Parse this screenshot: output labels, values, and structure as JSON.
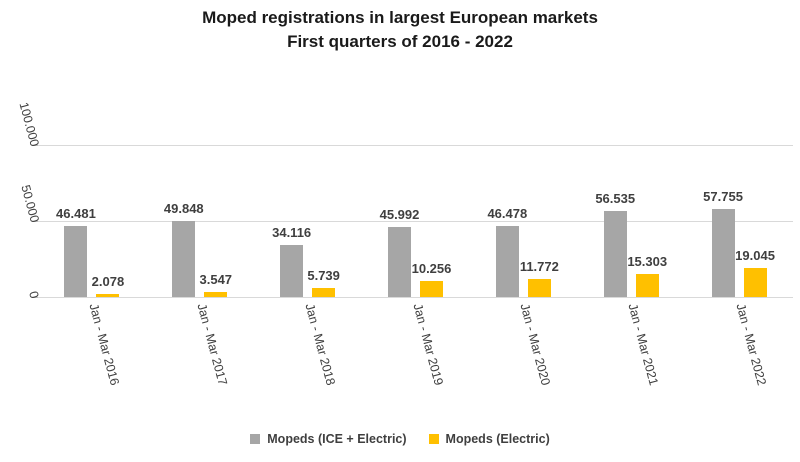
{
  "title": {
    "line1": "Moped registrations in largest European markets",
    "line2": "First quarters of 2016 - 2022"
  },
  "chart_data": {
    "type": "bar",
    "title": "Moped registrations in largest European markets — First quarters of 2016 - 2022",
    "categories": [
      "Jan - Mar 2016",
      "Jan - Mar 2017",
      "Jan - Mar 2018",
      "Jan - Mar 2019",
      "Jan - Mar 2020",
      "Jan - Mar 2021",
      "Jan - Mar 2022"
    ],
    "series": [
      {
        "name": "Mopeds (ICE + Electric)",
        "color": "#a6a6a6",
        "values": [
          46481,
          49848,
          34116,
          45992,
          46478,
          56535,
          57755
        ],
        "labels": [
          "46.481",
          "49.848",
          "34.116",
          "45.992",
          "46.478",
          "56.535",
          "57.755"
        ]
      },
      {
        "name": "Mopeds (Electric)",
        "color": "#ffc000",
        "values": [
          2078,
          3547,
          5739,
          10256,
          11772,
          15303,
          19045
        ],
        "labels": [
          "2.078",
          "3.547",
          "5.739",
          "10.256",
          "11.772",
          "15.303",
          "19.045"
        ]
      }
    ],
    "y_axis": {
      "max": 100000,
      "ticks": [
        {
          "label": "0",
          "value": 0
        },
        {
          "label": "50.000",
          "value": 50000
        },
        {
          "label": "100.000",
          "value": 100000
        }
      ]
    },
    "grid": true,
    "legend_position": "bottom"
  },
  "colors": {
    "gridline": "#d9d9d9",
    "axis_line": "#d9d9d9",
    "tick_mark": "#bfbfbf",
    "bar_ice": "#a6a6a6",
    "bar_electric": "#ffc000",
    "label_text": "#3f3f3f",
    "title_text": "#1a1a1a",
    "background": "#ffffff"
  }
}
